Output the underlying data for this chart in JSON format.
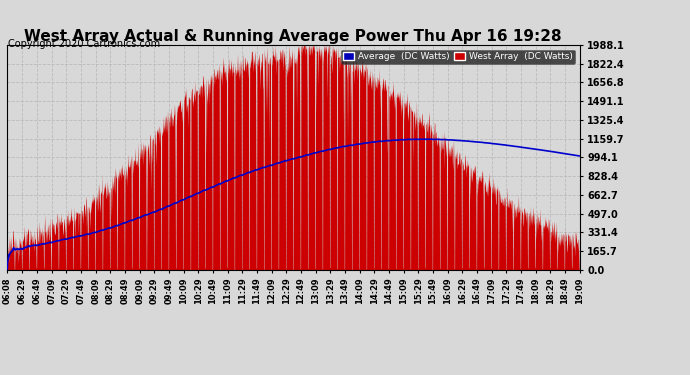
{
  "title": "West Array Actual & Running Average Power Thu Apr 16 19:28",
  "copyright": "Copyright 2020 Cartronics.com",
  "background_color": "#d8d8d8",
  "plot_bg_color": "#d8d8d8",
  "yticks": [
    0.0,
    165.7,
    331.4,
    497.0,
    662.7,
    828.4,
    994.1,
    1159.7,
    1325.4,
    1491.1,
    1656.8,
    1822.4,
    1988.1
  ],
  "ymax": 1988.1,
  "ymin": 0.0,
  "legend_avg_label": "Average  (DC Watts)",
  "legend_west_label": "West Array  (DC Watts)",
  "legend_avg_bg": "#0000bb",
  "legend_west_bg": "#cc0000",
  "xtick_labels": [
    "06:08",
    "06:29",
    "06:49",
    "07:09",
    "07:29",
    "07:49",
    "08:09",
    "08:29",
    "08:49",
    "09:09",
    "09:29",
    "09:49",
    "10:09",
    "10:29",
    "10:49",
    "11:09",
    "11:29",
    "11:49",
    "12:09",
    "12:29",
    "12:49",
    "13:09",
    "13:29",
    "13:49",
    "14:09",
    "14:29",
    "14:49",
    "15:09",
    "15:29",
    "15:49",
    "16:09",
    "16:29",
    "16:49",
    "17:09",
    "17:29",
    "17:49",
    "18:09",
    "18:29",
    "18:49",
    "19:09"
  ],
  "grid_color": "#bbbbbb",
  "fill_color": "#cc0000",
  "line_color": "#0000cc",
  "title_color": "#000000",
  "title_fontsize": 11,
  "copyright_fontsize": 7
}
